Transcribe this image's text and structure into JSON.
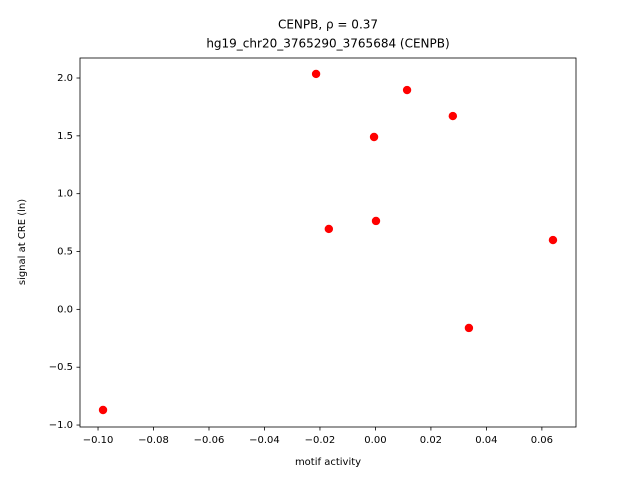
{
  "chart_data": {
    "type": "scatter",
    "title": "CENPB, ρ = 0.37",
    "subtitle": "hg19_chr20_3765290_3765684 (CENPB)",
    "x_label": "motif activity",
    "y_label": "signal at CRE (ln)",
    "color": "#ff0000",
    "x": [
      -0.0214,
      0.0114,
      0.0279,
      -0.0005,
      0.0002,
      -0.0168,
      0.064,
      0.0337,
      -0.0982
    ],
    "values": [
      2.035,
      1.896,
      1.671,
      1.49,
      0.764,
      0.695,
      0.599,
      -0.161,
      -0.87
    ],
    "xlim": [
      -0.1065,
      0.0723
    ],
    "ylim": [
      -1.017,
      2.173
    ],
    "xticks": [
      {
        "value": -0.1,
        "label": "−0.10"
      },
      {
        "value": -0.08,
        "label": "−0.08"
      },
      {
        "value": -0.06,
        "label": "−0.06"
      },
      {
        "value": -0.04,
        "label": "−0.04"
      },
      {
        "value": -0.02,
        "label": "−0.02"
      },
      {
        "value": 0,
        "label": "0.00"
      },
      {
        "value": 0.02,
        "label": "0.02"
      },
      {
        "value": 0.04,
        "label": "0.04"
      },
      {
        "value": 0.06,
        "label": "0.06"
      }
    ],
    "yticks": [
      {
        "value": -1,
        "label": "−1.0"
      },
      {
        "value": -0.5,
        "label": "−0.5"
      },
      {
        "value": 0,
        "label": "0.0"
      },
      {
        "value": 0.5,
        "label": "0.5"
      },
      {
        "value": 1,
        "label": "1.0"
      },
      {
        "value": 1.5,
        "label": "1.5"
      },
      {
        "value": 2,
        "label": "2.0"
      }
    ]
  }
}
